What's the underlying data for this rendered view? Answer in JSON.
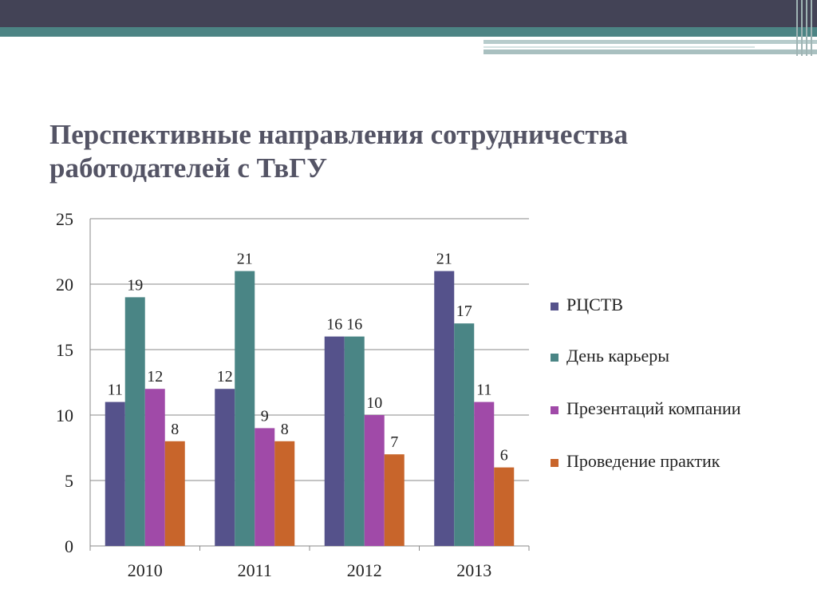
{
  "slide": {
    "title_line1": "Перспективные направления сотрудничества",
    "title_line2": "работодателей  с ТвГУ"
  },
  "colors": {
    "top_band": "#434356",
    "teal_band": "#4c8484",
    "series": [
      "#55528b",
      "#4a8585",
      "#a04aa8",
      "#c8652b"
    ]
  },
  "chart_data": {
    "type": "bar",
    "title": "Перспективные направления сотрудничества работодателей  с ТвГУ",
    "categories": [
      "2010",
      "2011",
      "2012",
      "2013"
    ],
    "series": [
      {
        "name": "РЦСТВ",
        "values": [
          11,
          12,
          16,
          21
        ]
      },
      {
        "name": "День карьеры",
        "values": [
          19,
          21,
          16,
          17
        ]
      },
      {
        "name": "Презентаций компании",
        "values": [
          12,
          9,
          10,
          11
        ]
      },
      {
        "name": "Проведение практик",
        "values": [
          8,
          8,
          7,
          6
        ]
      }
    ],
    "y_ticks": [
      "0",
      "5",
      "10",
      "15",
      "20",
      "25"
    ],
    "ylim": [
      0,
      25
    ],
    "grid": true,
    "legend_position": "right",
    "data_labels": true
  }
}
